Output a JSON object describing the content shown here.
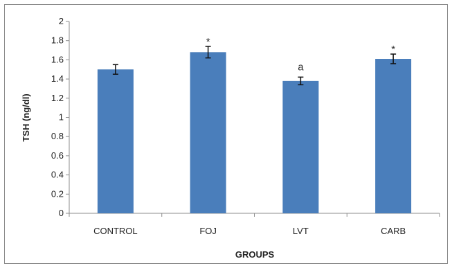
{
  "chart_data": {
    "type": "bar",
    "title": "",
    "xlabel": "GROUPS",
    "ylabel": "TSH (ng/dl)",
    "ylim": [
      0,
      2
    ],
    "yticks": [
      "0",
      "0.2",
      "0.4",
      "0.6",
      "0.8",
      "1",
      "1.2",
      "1.4",
      "1.6",
      "1.8",
      "2"
    ],
    "categories": [
      "CONTROL",
      "FOJ",
      "LVT",
      "CARB"
    ],
    "values": [
      1.5,
      1.68,
      1.38,
      1.61
    ],
    "errors": [
      0.05,
      0.06,
      0.04,
      0.05
    ],
    "annotations": [
      "",
      "*",
      "a",
      "*"
    ],
    "bar_color": "#4a7ebb",
    "grid": false,
    "legend": "none"
  }
}
